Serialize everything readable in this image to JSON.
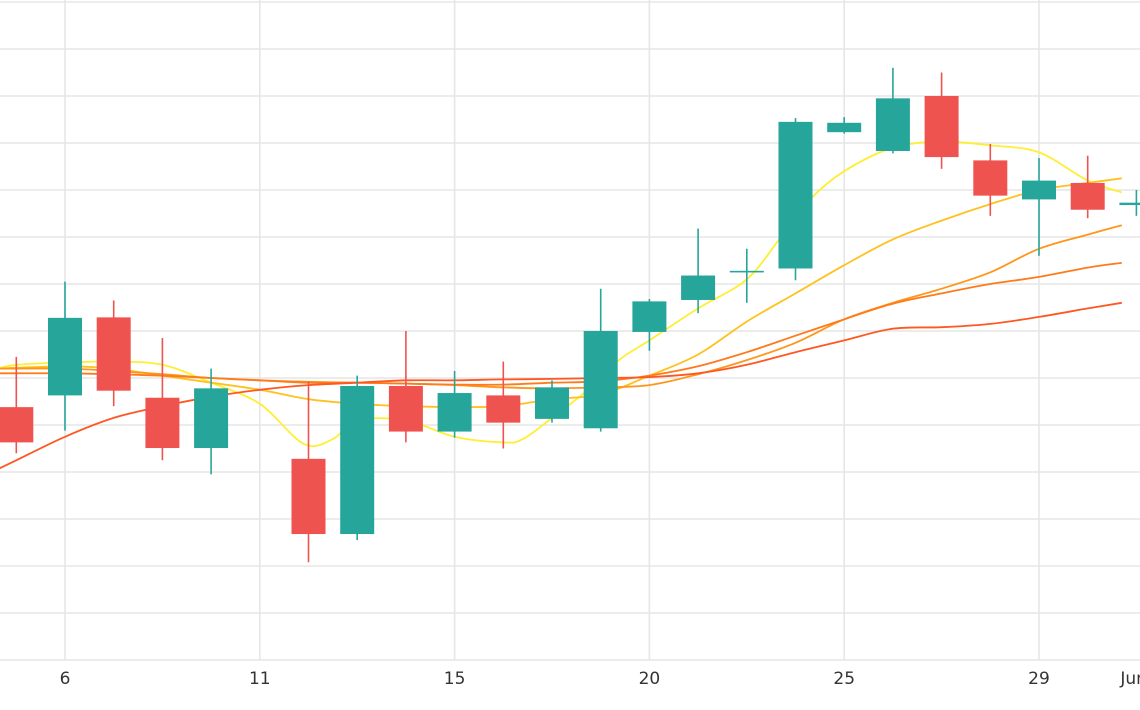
{
  "chart_data": {
    "type": "candlestick",
    "x_tick_labels": [
      {
        "index": 0,
        "label": "6"
      },
      {
        "index": 4,
        "label": "11"
      },
      {
        "index": 8,
        "label": "15"
      },
      {
        "index": 12,
        "label": "20"
      },
      {
        "index": 16,
        "label": "25"
      },
      {
        "index": 20,
        "label": "29"
      },
      {
        "index": 22,
        "label": "Jun"
      }
    ],
    "grid": true,
    "candles": [
      {
        "i": -1,
        "open": 5.38,
        "close": 4.63,
        "high": 6.45,
        "low": 4.4
      },
      {
        "i": 0,
        "open": 5.63,
        "close": 7.28,
        "high": 8.05,
        "low": 4.88
      },
      {
        "i": 1,
        "open": 7.29,
        "close": 5.73,
        "high": 7.65,
        "low": 5.4
      },
      {
        "i": 2,
        "open": 5.58,
        "close": 4.51,
        "high": 6.85,
        "low": 4.25
      },
      {
        "i": 3,
        "open": 4.51,
        "close": 5.78,
        "high": 6.2,
        "low": 3.95
      },
      {
        "i": 5,
        "open": 4.28,
        "close": 2.68,
        "high": 5.92,
        "low": 2.08
      },
      {
        "i": 6,
        "open": 2.68,
        "close": 5.83,
        "high": 6.05,
        "low": 2.55
      },
      {
        "i": 7,
        "open": 5.83,
        "close": 4.86,
        "high": 7.0,
        "low": 4.63
      },
      {
        "i": 8,
        "open": 4.86,
        "close": 5.68,
        "high": 6.15,
        "low": 4.73
      },
      {
        "i": 9,
        "open": 5.63,
        "close": 5.05,
        "high": 6.35,
        "low": 4.5
      },
      {
        "i": 10,
        "open": 5.13,
        "close": 5.8,
        "high": 5.95,
        "low": 5.05
      },
      {
        "i": 11,
        "open": 4.93,
        "close": 7.0,
        "high": 7.9,
        "low": 4.86
      },
      {
        "i": 12,
        "open": 6.98,
        "close": 7.63,
        "high": 7.68,
        "low": 6.58
      },
      {
        "i": 13,
        "open": 7.66,
        "close": 8.18,
        "high": 9.18,
        "low": 7.38
      },
      {
        "i": 14,
        "open": 8.28,
        "close": 8.28,
        "high": 8.75,
        "low": 7.6
      },
      {
        "i": 15,
        "open": 8.33,
        "close": 11.45,
        "high": 11.53,
        "low": 8.08
      },
      {
        "i": 16,
        "open": 11.23,
        "close": 11.43,
        "high": 11.55,
        "low": 11.2
      },
      {
        "i": 17,
        "open": 10.83,
        "close": 11.95,
        "high": 12.6,
        "low": 10.78
      },
      {
        "i": 18,
        "open": 12.0,
        "close": 10.7,
        "high": 12.5,
        "low": 10.45
      },
      {
        "i": 19,
        "open": 10.63,
        "close": 9.88,
        "high": 10.98,
        "low": 9.45
      },
      {
        "i": 20,
        "open": 9.8,
        "close": 10.2,
        "high": 10.68,
        "low": 8.6
      },
      {
        "i": 21,
        "open": 10.15,
        "close": 9.58,
        "high": 10.73,
        "low": 9.4
      },
      {
        "i": 22,
        "open": 9.68,
        "close": 9.73,
        "high": 10.0,
        "low": 9.45
      }
    ],
    "moving_averages": [
      {
        "color": "#ffee32",
        "points": [
          [
            -1.4,
            6.2
          ],
          [
            -1,
            6.28
          ],
          [
            0,
            6.33
          ],
          [
            1,
            6.35
          ],
          [
            2,
            6.28
          ],
          [
            3,
            5.9
          ],
          [
            4,
            5.45
          ],
          [
            4.9,
            4.6
          ],
          [
            5.5,
            4.7
          ],
          [
            6,
            5.1
          ],
          [
            7,
            5.1
          ],
          [
            8,
            4.75
          ],
          [
            9,
            4.63
          ],
          [
            9.4,
            4.7
          ],
          [
            10,
            5.15
          ],
          [
            10.8,
            5.8
          ],
          [
            11.4,
            6.4
          ],
          [
            12,
            6.8
          ],
          [
            13,
            7.48
          ],
          [
            14,
            8.1
          ],
          [
            14.7,
            9.0
          ],
          [
            15.3,
            9.8
          ],
          [
            16,
            10.4
          ],
          [
            17,
            10.9
          ],
          [
            18,
            11.03
          ],
          [
            19,
            10.95
          ],
          [
            20,
            10.8
          ],
          [
            21,
            10.2
          ],
          [
            21.7,
            9.95
          ]
        ]
      },
      {
        "color": "#ffc11e",
        "points": [
          [
            -1.4,
            6.2
          ],
          [
            0,
            6.25
          ],
          [
            1,
            6.2
          ],
          [
            2,
            6.05
          ],
          [
            3,
            5.9
          ],
          [
            4,
            5.75
          ],
          [
            5,
            5.55
          ],
          [
            6,
            5.45
          ],
          [
            7,
            5.4
          ],
          [
            8,
            5.38
          ],
          [
            9,
            5.4
          ],
          [
            10,
            5.55
          ],
          [
            11,
            5.65
          ],
          [
            12,
            6.05
          ],
          [
            13,
            6.5
          ],
          [
            14,
            7.2
          ],
          [
            15,
            7.8
          ],
          [
            16,
            8.4
          ],
          [
            17,
            8.95
          ],
          [
            18,
            9.35
          ],
          [
            19,
            9.7
          ],
          [
            20,
            10.0
          ],
          [
            21,
            10.15
          ],
          [
            21.7,
            10.25
          ]
        ]
      },
      {
        "color": "#ff961b",
        "points": [
          [
            -1.4,
            6.2
          ],
          [
            0,
            6.2
          ],
          [
            1,
            6.15
          ],
          [
            2,
            6.08
          ],
          [
            3,
            6.0
          ],
          [
            4,
            5.95
          ],
          [
            5,
            5.92
          ],
          [
            6,
            5.9
          ],
          [
            7,
            5.88
          ],
          [
            8,
            5.85
          ],
          [
            9,
            5.8
          ],
          [
            10,
            5.78
          ],
          [
            11,
            5.8
          ],
          [
            12,
            5.85
          ],
          [
            13,
            6.08
          ],
          [
            14,
            6.38
          ],
          [
            15,
            6.75
          ],
          [
            16,
            7.25
          ],
          [
            17,
            7.6
          ],
          [
            18,
            7.9
          ],
          [
            19,
            8.25
          ],
          [
            20,
            8.75
          ],
          [
            21,
            9.05
          ],
          [
            21.7,
            9.25
          ]
        ]
      },
      {
        "color": "#ff7a1a",
        "points": [
          [
            -1.4,
            6.1
          ],
          [
            0,
            6.1
          ],
          [
            1,
            6.08
          ],
          [
            2,
            6.05
          ],
          [
            3,
            6.0
          ],
          [
            4,
            5.95
          ],
          [
            5,
            5.9
          ],
          [
            6,
            5.9
          ],
          [
            7,
            5.88
          ],
          [
            8,
            5.86
          ],
          [
            9,
            5.86
          ],
          [
            10,
            5.9
          ],
          [
            11,
            5.93
          ],
          [
            12,
            6.05
          ],
          [
            13,
            6.25
          ],
          [
            14,
            6.55
          ],
          [
            15,
            6.9
          ],
          [
            16,
            7.25
          ],
          [
            17,
            7.58
          ],
          [
            18,
            7.8
          ],
          [
            19,
            8.0
          ],
          [
            20,
            8.15
          ],
          [
            21,
            8.35
          ],
          [
            21.7,
            8.45
          ]
        ]
      },
      {
        "color": "#ff5722",
        "points": [
          [
            -1.4,
            4.05
          ],
          [
            -1,
            4.25
          ],
          [
            0,
            4.75
          ],
          [
            1,
            5.15
          ],
          [
            2,
            5.4
          ],
          [
            3,
            5.6
          ],
          [
            4,
            5.75
          ],
          [
            5,
            5.85
          ],
          [
            6,
            5.9
          ],
          [
            7,
            5.95
          ],
          [
            8,
            5.95
          ],
          [
            9,
            5.97
          ],
          [
            10,
            5.98
          ],
          [
            11,
            6.0
          ],
          [
            12,
            6.02
          ],
          [
            13,
            6.1
          ],
          [
            14,
            6.28
          ],
          [
            15,
            6.55
          ],
          [
            16,
            6.8
          ],
          [
            17,
            7.05
          ],
          [
            18,
            7.08
          ],
          [
            19,
            7.15
          ],
          [
            20,
            7.3
          ],
          [
            21,
            7.48
          ],
          [
            21.7,
            7.6
          ]
        ]
      }
    ],
    "colors": {
      "up": "#26a69a",
      "down": "#ef5350",
      "grid": "#e6e6e6",
      "label": "#333333"
    }
  }
}
